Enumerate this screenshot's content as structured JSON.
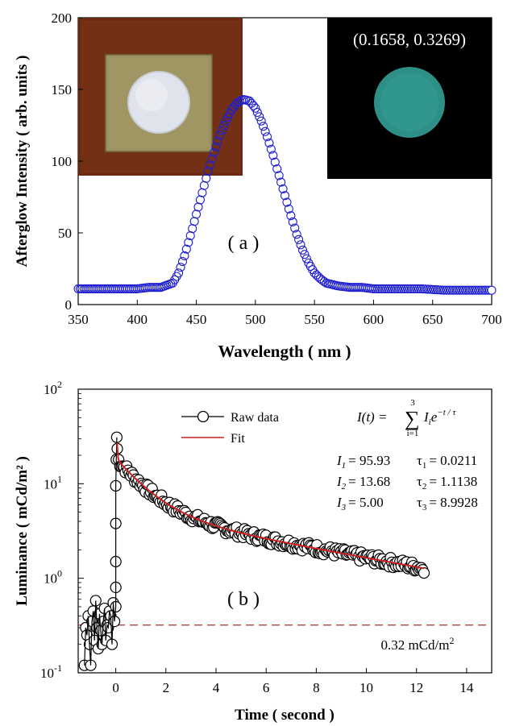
{
  "chart_data": [
    {
      "type": "scatter",
      "panel_label": "( a )",
      "xlabel": "Wavelength ( nm )",
      "ylabel": "Afterglow Intensity ( arb. units )",
      "xlim": [
        350,
        700
      ],
      "ylim": [
        0,
        200
      ],
      "x_ticks": [
        "350",
        "400",
        "450",
        "500",
        "550",
        "600",
        "650",
        "700"
      ],
      "y_ticks": [
        "0",
        "50",
        "100",
        "150",
        "200"
      ],
      "grid": false,
      "marker": "open-circle",
      "color": "#2020d0",
      "series": [
        {
          "x": [
            350,
            360,
            370,
            380,
            390,
            400,
            410,
            420,
            430,
            435,
            440,
            445,
            450,
            455,
            460,
            465,
            470,
            475,
            480,
            485,
            490,
            495,
            500,
            505,
            510,
            515,
            520,
            525,
            530,
            535,
            540,
            545,
            550,
            555,
            560,
            570,
            580,
            590,
            600,
            620,
            640,
            660,
            680,
            700
          ],
          "y": [
            11,
            11,
            11,
            11,
            11,
            11,
            12,
            12,
            15,
            22,
            34,
            48,
            63,
            78,
            93,
            106,
            118,
            128,
            136,
            141,
            143,
            142,
            137,
            128,
            117,
            104,
            90,
            76,
            62,
            49,
            38,
            29,
            22,
            18,
            15,
            13,
            12,
            12,
            11,
            11,
            11,
            10,
            10,
            10
          ]
        }
      ],
      "inset_left": {
        "description_colors": [
          "#6e2d14",
          "#9a9060",
          "#dfe3ec"
        ]
      },
      "inset_right": {
        "coordinate_text": "(0.1658, 0.3269)",
        "glow_color": "#2e8f86"
      }
    },
    {
      "type": "scatter",
      "panel_label": "( b )",
      "xlabel": "Time ( second )",
      "ylabel": "Luminance ( mCd/m² )",
      "xlim": [
        -1.5,
        15
      ],
      "ylim": [
        0.1,
        100
      ],
      "yscale": "log",
      "x_ticks": [
        "0",
        "2",
        "4",
        "6",
        "8",
        "10",
        "12",
        "14"
      ],
      "y_ticks": [
        {
          "base": "10",
          "exp": "2",
          "value": 100
        },
        {
          "base": "10",
          "exp": "1",
          "value": 10
        },
        {
          "base": "10",
          "exp": "0",
          "value": 1
        },
        {
          "base": "10",
          "exp": "-1",
          "value": 0.1
        }
      ],
      "grid": false,
      "legend": {
        "position": "top-center",
        "entries": [
          "Raw data",
          "Fit"
        ]
      },
      "equation_lhs": "I(t) =",
      "equation_sum": "∑",
      "equation_upper": "3",
      "equation_lower": "i=1",
      "equation_term_I": "I",
      "equation_sub_i": "i",
      "equation_e": "e",
      "equation_exp": "−t / τ",
      "params": [
        {
          "I_name": "I",
          "I_sub": "1",
          "I_val": "= 95.93",
          "tau_name": "τ",
          "tau_sub": "1",
          "tau_val": "= 0.0211"
        },
        {
          "I_name": "I",
          "I_sub": "2",
          "I_val": "= 13.68",
          "tau_name": "τ",
          "tau_sub": "2",
          "tau_val": "= 1.1138"
        },
        {
          "I_name": "I",
          "I_sub": "3",
          "I_val": "= 5.00",
          "tau_name": "τ",
          "tau_sub": "3",
          "tau_val": "= 8.9928"
        }
      ],
      "fit": {
        "I": [
          95.93,
          13.68,
          5.0
        ],
        "tau": [
          0.0211,
          1.1138,
          8.9928
        ],
        "t_start": 0,
        "t_end": 12.3,
        "color": "#cc2020"
      },
      "threshold": {
        "value": 0.32,
        "label": "0.32 mCd/m",
        "label_exp": "2",
        "color": "#a03030"
      },
      "raw_data": {
        "pre_x": [
          -1.25,
          -1.2,
          -1.15,
          -1.1,
          -1.05,
          -1.0,
          -0.95,
          -0.9,
          -0.85,
          -0.8,
          -0.75,
          -0.7,
          -0.65,
          -0.6,
          -0.55,
          -0.5,
          -0.45,
          -0.4,
          -0.35,
          -0.3,
          -0.25,
          -0.2,
          -0.15,
          -0.1,
          -0.05,
          0.0
        ],
        "pre_y": [
          0.12,
          0.3,
          0.25,
          0.4,
          0.2,
          0.12,
          0.35,
          0.45,
          0.22,
          0.58,
          0.3,
          0.18,
          0.42,
          0.28,
          0.2,
          0.35,
          0.48,
          0.22,
          0.32,
          0.3,
          0.45,
          0.4,
          0.2,
          0.55,
          0.35,
          0.5
        ],
        "rise_x": [
          0.0,
          0.0,
          0.0,
          0.0,
          0.02,
          0.04
        ],
        "rise_y": [
          0.8,
          1.5,
          3.8,
          9.5,
          18,
          31
        ],
        "decay_x_start": 0.06,
        "decay_x_end": 12.3,
        "decay_count": 230,
        "noise": 0.12
      }
    }
  ]
}
